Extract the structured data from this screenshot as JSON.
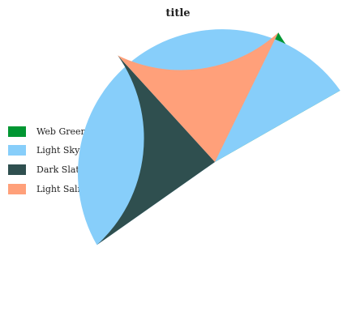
{
  "chart_data": {
    "type": "pie",
    "title": "title",
    "legend_position": "left",
    "categories": [
      "Web Green",
      "Light Sky Blue",
      "Dark Slate",
      "Light Salmon"
    ],
    "values": [
      9.5,
      48.5,
      23.0,
      19.0
    ],
    "colors": [
      "#009632",
      "#87cefa",
      "#2f4f4f",
      "#ffa07a"
    ]
  }
}
